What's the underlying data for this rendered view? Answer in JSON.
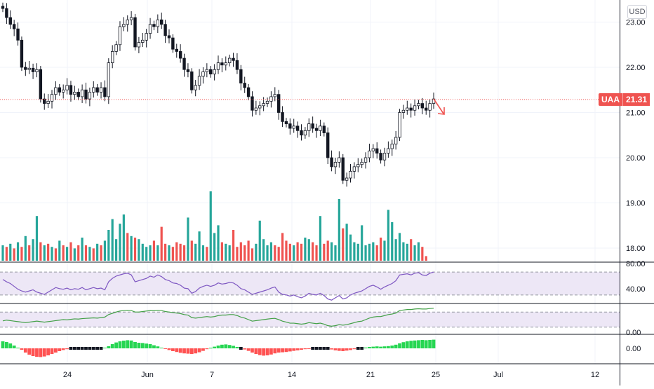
{
  "symbol": "UAA",
  "currency": "USD",
  "last_price": "21.31",
  "price_axis": {
    "labels": [
      "23.00",
      "22.00",
      "21.00",
      "20.00",
      "19.00",
      "18.00"
    ]
  },
  "rsi_axis": {
    "labels": [
      "80.00",
      "40.00"
    ]
  },
  "stoch_axis": {
    "labels": [
      "0.00"
    ]
  },
  "macd_axis": {
    "labels": [
      "0.00"
    ]
  },
  "time_axis": {
    "labels": [
      "24",
      "Jun",
      "7",
      "14",
      "21",
      "25",
      "Jul",
      "12"
    ]
  },
  "colors": {
    "up": "#26a69a",
    "down": "#ef5350",
    "candle_border": "#131722",
    "rsi_line": "#7e57c2",
    "rsi_band": "#ede7f6",
    "stoch_line": "#43a047",
    "hist_up": "#26d652",
    "hist_down": "#ff5252",
    "price_line": "#ef5350"
  },
  "icons": {
    "trend_arrow": "arrow-down-right-icon"
  },
  "chart_data": [
    {
      "type": "candlestick",
      "title": "UAA",
      "ylim": [
        17.8,
        23.3
      ],
      "x_ticks": [
        "24",
        "Jun",
        "7",
        "14",
        "21",
        "25",
        "Jul",
        "12"
      ],
      "closes": [
        23.3,
        23.1,
        22.95,
        22.85,
        22.6,
        22.0,
        21.95,
        21.98,
        21.9,
        21.95,
        21.3,
        21.2,
        21.25,
        21.4,
        21.55,
        21.45,
        21.5,
        21.6,
        21.4,
        21.45,
        21.35,
        21.5,
        21.3,
        21.45,
        21.55,
        21.45,
        21.55,
        21.35,
        22.1,
        22.35,
        22.5,
        22.9,
        22.95,
        23.05,
        23.1,
        22.45,
        22.55,
        22.6,
        22.75,
        22.95,
        22.9,
        23.05,
        22.95,
        22.7,
        22.65,
        22.4,
        22.35,
        22.2,
        21.95,
        21.9,
        21.5,
        21.6,
        21.8,
        21.9,
        21.95,
        21.85,
        21.95,
        22.1,
        22.05,
        22.1,
        22.2,
        22.15,
        21.95,
        21.65,
        21.55,
        21.35,
        21.05,
        21.1,
        21.15,
        21.2,
        21.25,
        21.35,
        21.4,
        21.0,
        20.8,
        20.75,
        20.65,
        20.7,
        20.6,
        20.5,
        20.6,
        20.75,
        20.65,
        20.6,
        20.7,
        20.55,
        20.0,
        19.8,
        19.9,
        20.0,
        19.5,
        19.55,
        19.7,
        19.8,
        19.85,
        19.9,
        20.0,
        20.15,
        20.2,
        20.1,
        19.95,
        20.1,
        20.2,
        20.3,
        20.45,
        21.0,
        21.05,
        21.1,
        21.05,
        21.15,
        21.2,
        21.1,
        21.05,
        21.2,
        21.3
      ],
      "volume": [
        1.0,
        0.9,
        1.1,
        0.8,
        1.2,
        0.9,
        1.6,
        1.0,
        1.4,
        2.9,
        1.2,
        1.0,
        1.1,
        0.9,
        0.8,
        1.3,
        1.0,
        0.9,
        1.2,
        0.8,
        1.0,
        1.5,
        1.0,
        0.9,
        0.8,
        1.1,
        1.0,
        1.3,
        2.0,
        2.7,
        1.4,
        2.4,
        3.0,
        1.8,
        1.6,
        1.5,
        1.4,
        1.1,
        0.9,
        1.0,
        1.3,
        1.0,
        2.2,
        1.1,
        1.0,
        0.9,
        1.2,
        1.1,
        1.0,
        2.8,
        1.3,
        1.1,
        1.9,
        1.0,
        0.9,
        4.5,
        1.8,
        2.3,
        1.2,
        1.1,
        1.0,
        2.0,
        0.9,
        1.2,
        1.0,
        1.3,
        0.8,
        1.1,
        2.6,
        1.4,
        1.0,
        1.2,
        1.0,
        0.9,
        1.8,
        1.3,
        1.1,
        1.0,
        1.2,
        1.1,
        1.5,
        1.4,
        1.2,
        1.0,
        2.9,
        1.1,
        1.3,
        1.2,
        1.0,
        4.0,
        2.1,
        2.4,
        1.7,
        1.2,
        1.1,
        2.3,
        1.0,
        1.1,
        1.2,
        1.0,
        1.5,
        1.3,
        3.3,
        2.5,
        1.4,
        1.8,
        1.2,
        1.1,
        1.4,
        1.0,
        1.2,
        0.9,
        0.3
      ],
      "volume_up_mask": [
        1,
        0,
        1,
        0,
        1,
        0,
        1,
        0,
        1,
        1,
        0,
        1,
        0,
        1,
        0,
        1,
        0,
        1,
        0,
        1,
        0,
        1,
        0,
        1,
        0,
        1,
        0,
        1,
        1,
        1,
        1,
        1,
        1,
        0,
        1,
        0,
        1,
        1,
        1,
        1,
        0,
        1,
        0,
        0,
        1,
        0,
        0,
        0,
        0,
        1,
        0,
        1,
        1,
        1,
        0,
        1,
        1,
        1,
        0,
        1,
        1,
        0,
        0,
        0,
        0,
        0,
        0,
        1,
        1,
        1,
        1,
        1,
        0,
        0,
        0,
        0,
        0,
        1,
        0,
        0,
        1,
        1,
        0,
        0,
        1,
        0,
        0,
        1,
        1,
        1,
        0,
        1,
        1,
        1,
        1,
        1,
        1,
        1,
        1,
        0,
        0,
        1,
        1,
        1,
        1,
        1,
        1,
        1,
        0,
        1,
        1,
        0,
        0,
        1,
        1
      ]
    },
    {
      "type": "line",
      "name": "RSI",
      "ylim": [
        25,
        85
      ],
      "bands": [
        75,
        35
      ],
      "values": [
        62,
        58,
        55,
        50,
        45,
        42,
        40,
        42,
        44,
        40,
        38,
        36,
        40,
        44,
        48,
        46,
        45,
        47,
        44,
        46,
        45,
        48,
        44,
        46,
        48,
        46,
        47,
        44,
        58,
        64,
        68,
        70,
        72,
        73,
        70,
        58,
        60,
        62,
        64,
        68,
        66,
        70,
        67,
        62,
        60,
        56,
        55,
        52,
        47,
        46,
        38,
        41,
        47,
        50,
        52,
        50,
        52,
        56,
        54,
        55,
        57,
        56,
        52,
        46,
        44,
        40,
        36,
        38,
        40,
        42,
        44,
        47,
        49,
        40,
        36,
        35,
        33,
        35,
        32,
        30,
        33,
        38,
        36,
        35,
        38,
        34,
        28,
        26,
        30,
        34,
        28,
        30,
        35,
        38,
        40,
        42,
        46,
        50,
        52,
        49,
        45,
        49,
        52,
        55,
        60,
        70,
        71,
        72,
        70,
        73,
        74,
        70,
        69,
        73,
        75
      ]
    },
    {
      "type": "line",
      "name": "Stoch",
      "ylim": [
        0,
        100
      ],
      "bands": [
        80,
        20
      ],
      "values": [
        45,
        48,
        46,
        44,
        42,
        40,
        38,
        40,
        42,
        44,
        42,
        40,
        42,
        44,
        46,
        48,
        50,
        49,
        51,
        53,
        52,
        54,
        55,
        56,
        57,
        56,
        58,
        60,
        70,
        75,
        80,
        84,
        86,
        87,
        86,
        80,
        80,
        82,
        84,
        86,
        85,
        87,
        86,
        82,
        80,
        78,
        76,
        74,
        70,
        68,
        58,
        56,
        58,
        60,
        62,
        60,
        62,
        66,
        68,
        68,
        70,
        70,
        66,
        60,
        56,
        50,
        44,
        46,
        48,
        50,
        52,
        54,
        55,
        50,
        44,
        40,
        36,
        36,
        34,
        32,
        34,
        38,
        36,
        34,
        36,
        32,
        26,
        24,
        26,
        30,
        28,
        30,
        34,
        38,
        42,
        44,
        50,
        56,
        60,
        62,
        62,
        66,
        70,
        72,
        76,
        86,
        88,
        90,
        90,
        92,
        93,
        92,
        92,
        94,
        95
      ]
    },
    {
      "type": "bar",
      "name": "MACD Histogram",
      "ylim": [
        -1,
        1
      ],
      "values": [
        0.5,
        0.45,
        0.35,
        0.2,
        0.05,
        -0.1,
        -0.3,
        -0.45,
        -0.55,
        -0.6,
        -0.62,
        -0.58,
        -0.5,
        -0.4,
        -0.3,
        -0.2,
        -0.12,
        -0.06,
        -0.02,
        0.02,
        -0.02,
        0.02,
        -0.02,
        0.02,
        -0.02,
        0.02,
        -0.02,
        0.05,
        0.15,
        0.3,
        0.42,
        0.5,
        0.55,
        0.58,
        0.56,
        0.45,
        0.4,
        0.38,
        0.34,
        0.3,
        0.22,
        0.14,
        0.05,
        -0.05,
        -0.12,
        -0.2,
        -0.26,
        -0.32,
        -0.36,
        -0.38,
        -0.4,
        -0.36,
        -0.28,
        -0.18,
        -0.06,
        0.04,
        0.12,
        0.2,
        0.26,
        0.28,
        0.24,
        0.18,
        0.1,
        0.02,
        -0.08,
        -0.18,
        -0.3,
        -0.4,
        -0.48,
        -0.52,
        -0.5,
        -0.44,
        -0.36,
        -0.3,
        -0.28,
        -0.26,
        -0.22,
        -0.18,
        -0.14,
        -0.1,
        -0.06,
        -0.04,
        -0.02,
        0.02,
        -0.02,
        0.02,
        -0.02,
        -0.08,
        -0.14,
        -0.18,
        -0.2,
        -0.16,
        -0.12,
        -0.06,
        -0.02,
        0.02,
        0.06,
        0.1,
        0.12,
        0.14,
        0.12,
        0.14,
        0.16,
        0.2,
        0.26,
        0.36,
        0.44,
        0.5,
        0.54,
        0.56,
        0.58,
        0.6,
        0.58,
        0.6,
        0.62
      ]
    }
  ]
}
